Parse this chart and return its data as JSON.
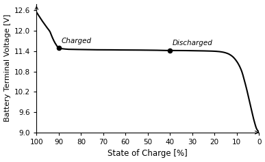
{
  "title": "",
  "xlabel": "State of Charge [%]",
  "ylabel": "Battery Terminal Voltage [V]",
  "xlim": [
    100,
    0
  ],
  "ylim": [
    9,
    12.8
  ],
  "yticks": [
    9,
    9.6,
    10.2,
    10.8,
    11.4,
    12.0,
    12.6
  ],
  "xticks": [
    100,
    90,
    80,
    70,
    60,
    50,
    40,
    30,
    20,
    10,
    0
  ],
  "charged_point": [
    90,
    11.49
  ],
  "discharged_point": [
    40,
    11.42
  ],
  "charged_label": "Charged",
  "discharged_label": "Discharged",
  "line_color": "#000000",
  "marker_color": "#000000",
  "background_color": "#ffffff",
  "soc_data": [
    100,
    99,
    98,
    97,
    96,
    95,
    94,
    93,
    92,
    91,
    90,
    88,
    85,
    80,
    75,
    70,
    65,
    60,
    55,
    50,
    45,
    40,
    35,
    30,
    25,
    20,
    18,
    16,
    14,
    12,
    10,
    8,
    6,
    4,
    2,
    1,
    0.5,
    0.1,
    0
  ],
  "volt_data": [
    12.55,
    12.45,
    12.35,
    12.25,
    12.16,
    12.07,
    11.98,
    11.82,
    11.68,
    11.57,
    11.49,
    11.47,
    11.455,
    11.45,
    11.445,
    11.44,
    11.44,
    11.435,
    11.435,
    11.43,
    11.428,
    11.42,
    11.42,
    11.415,
    11.41,
    11.4,
    11.39,
    11.37,
    11.33,
    11.25,
    11.1,
    10.85,
    10.4,
    9.85,
    9.3,
    9.1,
    9.05,
    9.02,
    9.0
  ]
}
